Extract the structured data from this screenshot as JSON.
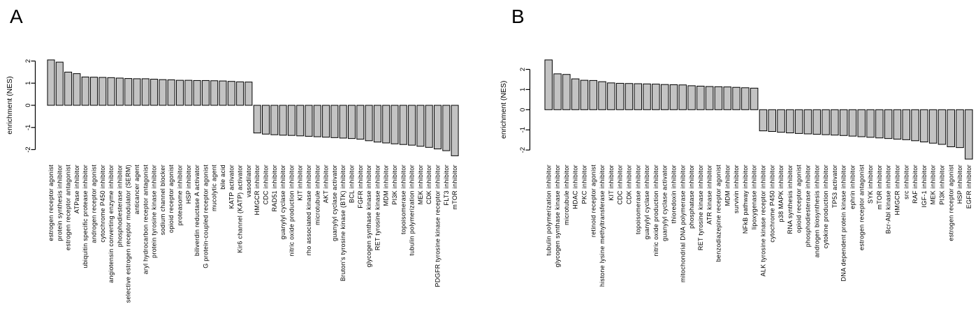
{
  "figure": {
    "background": "#ffffff",
    "bar_fill": "#c3c3c3",
    "bar_stroke": "#000000",
    "axis_color": "#000000"
  },
  "chart_data": [
    {
      "type": "bar",
      "panel": "A",
      "ylabel": "enrichment  (NES)",
      "ylim": [
        -2,
        2
      ],
      "yticks": [
        2,
        1,
        0,
        -1,
        -2
      ],
      "grid": false,
      "legend": "none",
      "bar_color": "#c3c3c3",
      "categories": [
        "estrogen receptor agonist",
        "protein synthesis inhibitor",
        "estrogen receptor antagonist",
        "ATPase inhibitor",
        "ubiquitin specific protease inhibitor",
        "androgen receptor agonist",
        "cytochrome P450 inhibitor",
        "angiotensin converting enzyme inhibitor",
        "phosphodiesterase inhibitor",
        "selective estrogen receptor modulator (SERM)",
        "anticancer agent",
        "aryl hydrocarbon receptor antagonist",
        "protein tyrosine kinase inhibitor",
        "sodium channel blocker",
        "opioid receptor agonist",
        "proteasome inhibitor",
        "HSP inhibitor",
        "biliverdin reductase A activator",
        "G protein-coupled receptor agonist",
        "mucolytic agent",
        "bile acid",
        "KATP activator",
        "Kir6 channel (KATP) activator",
        "vasodilator",
        "HMGCR inhibitor",
        "CDC inhibitor",
        "RAD51 inhibitor",
        "guanylyl cyclase inhibitor",
        "nitric oxide production inhibitor",
        "KIT inhibitor",
        "rho associated kinase inhibitor",
        "microtubule inhibitor",
        "AKT inhibitor",
        "guanylyl cyclase activator",
        "Bruton's tyrosine kinase (BTK) inhibitor",
        "BCL inhibitor",
        "FGFR inhibitor",
        "glycogen synthase kinase inhibitor",
        "RET tyrosine kinase inhibitor",
        "MDM inhibitor",
        "PI3K inhibitor",
        "topoisomerase inhibitor",
        "tubulin polymerization inhibitor",
        "MEK inhibitor",
        "CDK inhibitor",
        "PDGFR tyrosine kinase receptor inhibitor",
        "FLT3 inhibitor",
        "mTOR inhibitor"
      ],
      "values": [
        2.05,
        1.95,
        1.5,
        1.43,
        1.28,
        1.27,
        1.26,
        1.25,
        1.23,
        1.21,
        1.2,
        1.2,
        1.18,
        1.16,
        1.15,
        1.13,
        1.13,
        1.12,
        1.12,
        1.11,
        1.1,
        1.08,
        1.06,
        1.05,
        -1.25,
        -1.3,
        -1.33,
        -1.35,
        -1.36,
        -1.38,
        -1.4,
        -1.42,
        -1.44,
        -1.46,
        -1.48,
        -1.5,
        -1.53,
        -1.6,
        -1.66,
        -1.7,
        -1.74,
        -1.77,
        -1.8,
        -1.85,
        -1.9,
        -1.97,
        -2.05,
        -2.28
      ]
    },
    {
      "type": "bar",
      "panel": "B",
      "ylabel": "enrichment  (NES)",
      "ylim": [
        -2,
        2
      ],
      "yticks": [
        2,
        1,
        0,
        -1,
        -2
      ],
      "grid": false,
      "legend": "none",
      "bar_color": "#c3c3c3",
      "categories": [
        "tubulin polymerization inhibitor",
        "glycogen synthase kinase inhibitor",
        "microtubule inhibitor",
        "HDAC inhibitor",
        "PKC inhibitor",
        "retinoid receptor agonist",
        "histone lysine methyltransferase inhibitor",
        "KIT inhibitor",
        "CDC inhibitor",
        "CDK inhibitor",
        "topoisomerase inhibitor",
        "guanylyl cyclase inhibitor",
        "nitric oxide production inhibitor",
        "guanylyl cyclase activator",
        "thioredoxin inhibitor",
        "mitochondrial DNA polymerase inhibitor",
        "phosphatase inhibitor",
        "RET tyrosine kinase inhibitor",
        "ATR kinase inhibitor",
        "benzodiazepine receptor agonist",
        "MDM inhibitor",
        "survivin inhibitor",
        "NFkB pathway inhibitor",
        "lipoxygenase inhibitor",
        "ALK tyrosine kinase receptor inhibitor",
        "cytochrome P450 inhibitor",
        "p38 MAPK inhibitor",
        "RNA synthesis inhibitor",
        "opioid receptor agonist",
        "phosphodiesterase inhibitor",
        "androgen biosynthesis inhibitor",
        "cytokine production inhibitor",
        "TP53 activator",
        "DNA dependent protein kinase inhibitor",
        "ephrin inhibitor",
        "estrogen receptor antagonist",
        "SYK inhibitor",
        "mTOR inhibitor",
        "Bcr-Abl kinase inhibitor",
        "HMGCR inhibitor",
        "src inhibitor",
        "RAF inhibitor",
        "IGF-1 inhibitor",
        "MEK inhibitor",
        "PI3K inhibitor",
        "estrogen receptor agonist",
        "HSP inhibitor",
        "EGFR inhibitor"
      ],
      "values": [
        2.47,
        1.78,
        1.75,
        1.53,
        1.46,
        1.45,
        1.39,
        1.33,
        1.31,
        1.3,
        1.29,
        1.28,
        1.27,
        1.25,
        1.24,
        1.23,
        1.19,
        1.17,
        1.15,
        1.14,
        1.13,
        1.11,
        1.09,
        1.07,
        -1.05,
        -1.08,
        -1.12,
        -1.15,
        -1.18,
        -1.2,
        -1.22,
        -1.24,
        -1.26,
        -1.28,
        -1.31,
        -1.34,
        -1.37,
        -1.4,
        -1.43,
        -1.46,
        -1.49,
        -1.54,
        -1.6,
        -1.66,
        -1.72,
        -1.84,
        -1.88,
        -2.45
      ]
    }
  ]
}
